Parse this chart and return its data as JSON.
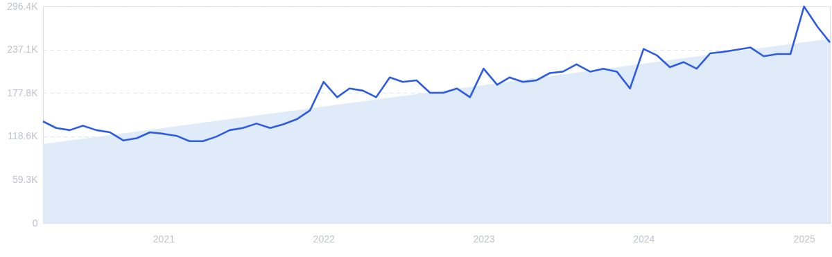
{
  "chart_data": {
    "type": "line",
    "x": [
      "2020-04",
      "2020-05",
      "2020-06",
      "2020-07",
      "2020-08",
      "2020-09",
      "2020-10",
      "2020-11",
      "2020-12",
      "2021-01",
      "2021-02",
      "2021-03",
      "2021-04",
      "2021-05",
      "2021-06",
      "2021-07",
      "2021-08",
      "2021-09",
      "2021-10",
      "2021-11",
      "2021-12",
      "2022-01",
      "2022-02",
      "2022-03",
      "2022-04",
      "2022-05",
      "2022-06",
      "2022-07",
      "2022-08",
      "2022-09",
      "2022-10",
      "2022-11",
      "2022-12",
      "2023-01",
      "2023-02",
      "2023-03",
      "2023-04",
      "2023-05",
      "2023-06",
      "2023-07",
      "2023-08",
      "2023-09",
      "2023-10",
      "2023-11",
      "2023-12",
      "2024-01",
      "2024-02",
      "2024-03",
      "2024-04",
      "2024-05",
      "2024-06",
      "2024-07",
      "2024-08",
      "2024-09",
      "2024-10",
      "2024-11",
      "2024-12",
      "2025-01",
      "2025-02",
      "2025-03"
    ],
    "series": [
      {
        "type": "area",
        "color": "#dde9fa",
        "x": [
          "2020-04",
          "2025-03"
        ],
        "values": [
          108000,
          252000
        ]
      },
      {
        "color": "#2d5be3",
        "values": [
          139000,
          130000,
          127000,
          133000,
          127000,
          124000,
          113000,
          116000,
          124000,
          122000,
          119000,
          112000,
          112000,
          118000,
          127000,
          130000,
          136000,
          130000,
          135000,
          142000,
          154000,
          193000,
          172000,
          184000,
          181000,
          172000,
          199000,
          193000,
          195000,
          178000,
          178000,
          184000,
          172000,
          211000,
          189000,
          199000,
          193000,
          195000,
          205000,
          207000,
          217000,
          207000,
          211000,
          207000,
          184000,
          238000,
          229000,
          213000,
          220000,
          211000,
          232000,
          234000,
          237000,
          240000,
          228000,
          231000,
          231000,
          296000,
          268000,
          247000
        ]
      }
    ],
    "xlim": [
      "2020-04",
      "2025-03"
    ],
    "xticks": [
      "2021",
      "2022",
      "2023",
      "2024",
      "2025"
    ],
    "ylim": [
      0,
      296400
    ],
    "yticks": [
      0,
      {
        "value": 59300,
        "label": "59.3K"
      },
      {
        "value": 118600,
        "label": "118.6K"
      },
      {
        "value": 177800,
        "label": "177.8K"
      },
      {
        "value": 237100,
        "label": "237.1K"
      },
      {
        "value": 296400,
        "label": "296.4K"
      }
    ],
    "grid": "y",
    "marker": "none",
    "line_style": "solid"
  }
}
